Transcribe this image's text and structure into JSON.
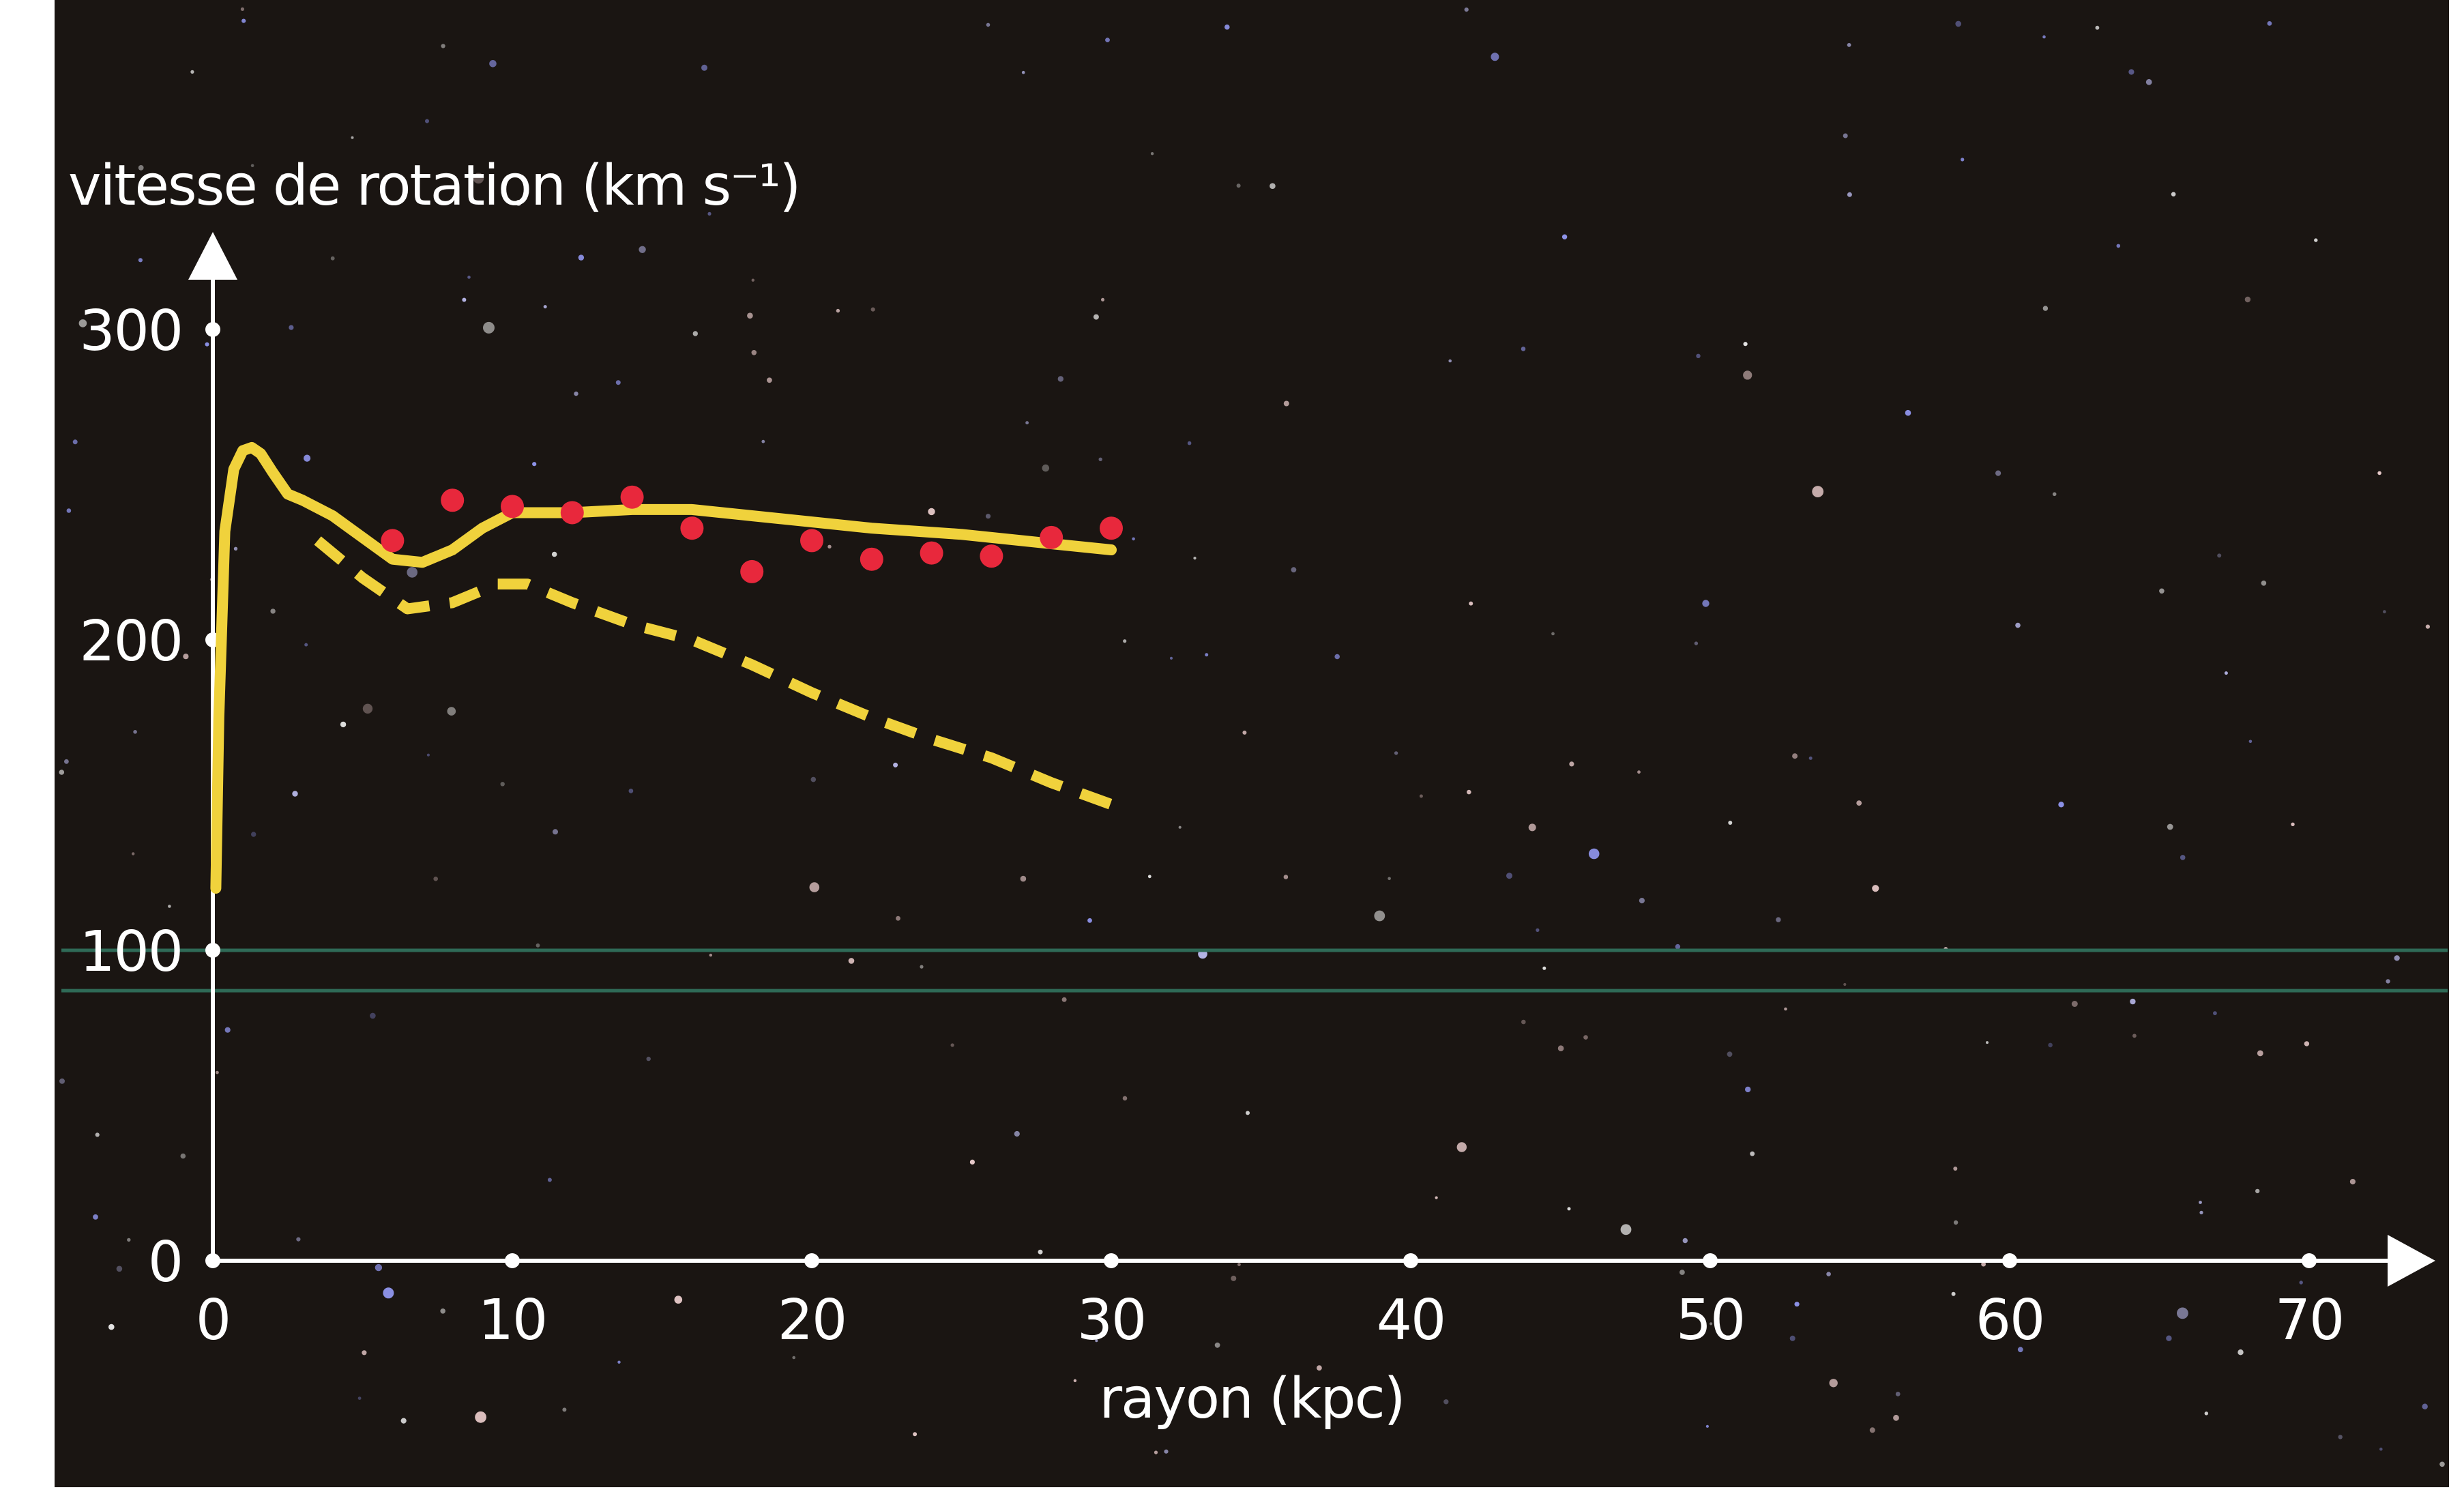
{
  "chart_data": {
    "type": "line",
    "ylabel": "vitesse de rotation (km s⁻¹)",
    "xlabel": "rayon (kpc)",
    "xlim": [
      0,
      74
    ],
    "ylim": [
      0,
      315
    ],
    "xticks": [
      "0",
      "10",
      "20",
      "30",
      "40",
      "50",
      "60",
      "70"
    ],
    "yticks": [
      "0",
      "100",
      "200",
      "300"
    ],
    "xtick_values": [
      0,
      10,
      20,
      30,
      40,
      50,
      60,
      70
    ],
    "ytick_values": [
      0,
      100,
      200,
      300
    ],
    "grid": false,
    "legend": "none",
    "reference_lines_y": [
      100,
      87
    ],
    "series": [
      {
        "style": "solid",
        "color": "#f0d23c",
        "x": [
          0.1,
          0.2,
          0.4,
          0.7,
          1.0,
          1.3,
          1.6,
          2.0,
          2.5,
          3.0,
          4.0,
          5.0,
          6.0,
          7.0,
          8.0,
          9.0,
          10.0,
          12.0,
          14.0,
          16.0,
          18.0,
          20.0,
          22.0,
          25.0,
          28.0,
          30.0
        ],
        "values": [
          120,
          175,
          235,
          255,
          261,
          262,
          260,
          254,
          247,
          245,
          240,
          233,
          226,
          225,
          229,
          236,
          241,
          241,
          242,
          242,
          240,
          238,
          236,
          234,
          231,
          229
        ]
      },
      {
        "style": "dashed",
        "color": "#f0d23c",
        "x": [
          3.5,
          5.0,
          6.5,
          8.0,
          9.5,
          10.5,
          12.0,
          14.0,
          16.0,
          18.0,
          20.0,
          22.0,
          24.0,
          26.0,
          28.0,
          30.0
        ],
        "values": [
          232,
          220,
          210,
          212,
          218,
          218,
          212,
          205,
          200,
          192,
          183,
          175,
          168,
          162,
          154,
          147
        ]
      },
      {
        "style": "dots",
        "color": "#e8283c",
        "x": [
          6,
          8,
          10,
          12,
          14,
          16,
          18,
          20,
          22,
          24,
          26,
          28,
          30
        ],
        "values": [
          232,
          245,
          243,
          241,
          246,
          236,
          222,
          232,
          226,
          228,
          227,
          233,
          236
        ]
      }
    ]
  }
}
